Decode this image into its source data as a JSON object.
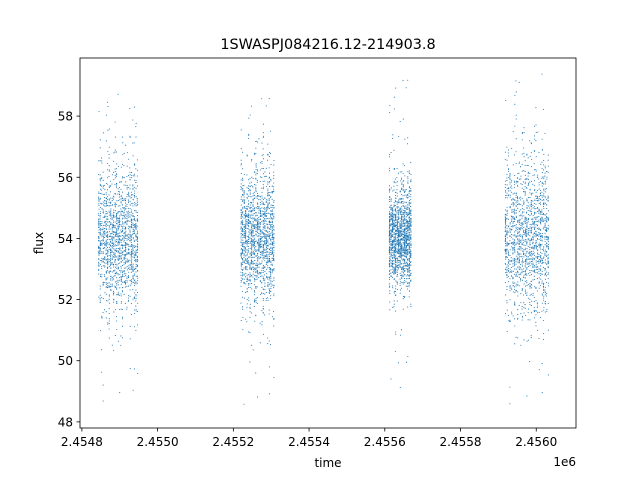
{
  "chart_data": {
    "type": "scatter",
    "title": "1SWASPJ084216.12-214903.8",
    "xlabel": "time",
    "ylabel": "flux",
    "x_offset_label": "1e6",
    "xlim": [
      2454795,
      2456105
    ],
    "ylim": [
      47.8,
      59.9
    ],
    "x_ticks": [
      2454800,
      2455000,
      2455200,
      2455400,
      2455600,
      2455800,
      2456000
    ],
    "x_tick_labels": [
      "2.4548",
      "2.4550",
      "2.4552",
      "2.4554",
      "2.4556",
      "2.4558",
      "2.4560"
    ],
    "y_ticks": [
      48,
      50,
      52,
      54,
      56,
      58
    ],
    "y_tick_labels": [
      "48",
      "50",
      "52",
      "54",
      "56",
      "58"
    ],
    "grid": false,
    "marker_color": "#1f77b4",
    "observing_seasons": [
      {
        "x_start": 2454844,
        "x_end": 2454950,
        "y_center": 54.0,
        "y_spread": 1.2,
        "y_min": 48.5,
        "y_max": 59.0
      },
      {
        "x_start": 2455220,
        "x_end": 2455310,
        "y_center": 54.0,
        "y_spread": 1.1,
        "y_min": 48.4,
        "y_max": 58.6
      },
      {
        "x_start": 2455612,
        "x_end": 2455672,
        "y_center": 54.0,
        "y_spread": 0.8,
        "y_min": 48.7,
        "y_max": 59.2
      },
      {
        "x_start": 2455918,
        "x_end": 2456035,
        "y_center": 54.0,
        "y_spread": 1.3,
        "y_min": 48.4,
        "y_max": 59.4
      }
    ]
  }
}
